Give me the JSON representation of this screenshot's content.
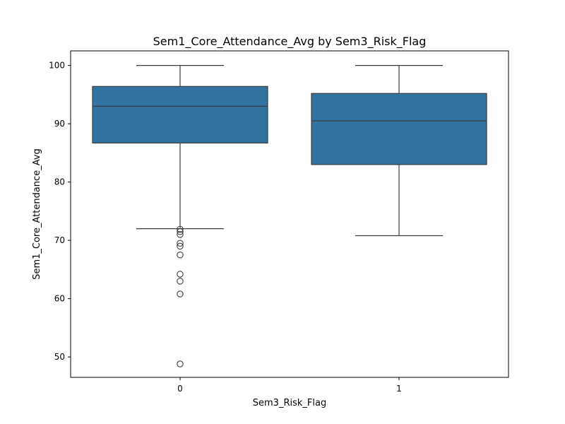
{
  "chart_data": {
    "type": "box",
    "title": "Sem1_Core_Attendance_Avg by Sem3_Risk_Flag",
    "xlabel": "Sem3_Risk_Flag",
    "ylabel": "Sem1_Core_Attendance_Avg",
    "categories": [
      "0",
      "1"
    ],
    "ylim": [
      46.5,
      102.5
    ],
    "yticks": [
      50,
      60,
      70,
      80,
      90,
      100
    ],
    "grid": false,
    "legend": null,
    "colors": {
      "box": "#3274a1",
      "line": "#3d3d3d",
      "frame": "#000000"
    },
    "boxes": [
      {
        "category": "0",
        "whisker_low": 72.0,
        "q1": 86.7,
        "median": 93.0,
        "q3": 96.4,
        "whisker_high": 100.0,
        "outliers": [
          71.9,
          71.5,
          71.0,
          69.5,
          69.0,
          67.5,
          64.2,
          63.0,
          60.8,
          48.8
        ]
      },
      {
        "category": "1",
        "whisker_low": 70.8,
        "q1": 83.0,
        "median": 90.5,
        "q3": 95.2,
        "whisker_high": 100.0,
        "outliers": []
      }
    ]
  }
}
